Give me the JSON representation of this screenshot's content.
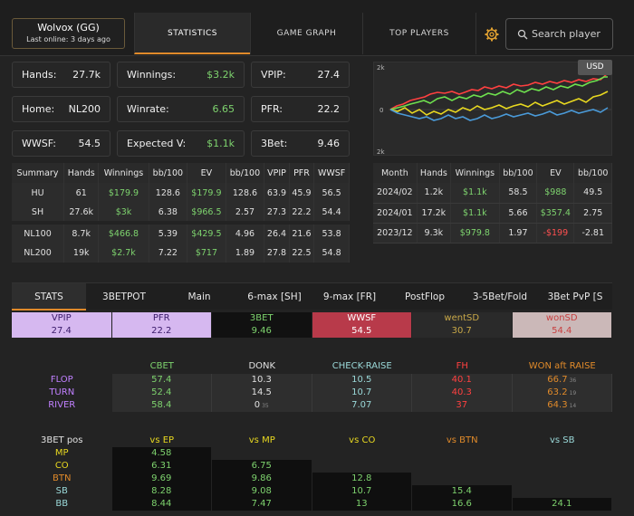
{
  "player": {
    "name": "Wolvox (GG)",
    "last_online": "Last online: 3 days ago"
  },
  "nav": {
    "statistics": "STATISTICS",
    "game_graph": "GAME GRAPH",
    "top_players": "TOP PLAYERS"
  },
  "search": {
    "placeholder": "Search player"
  },
  "cards": {
    "hands": {
      "label": "Hands:",
      "value": "27.7k"
    },
    "winnings": {
      "label": "Winnings:",
      "value": "$3.2k"
    },
    "vpip": {
      "label": "VPIP:",
      "value": "27.4"
    },
    "home": {
      "label": "Home:",
      "value": "NL200"
    },
    "winrate": {
      "label": "Winrate:",
      "value": "6.65"
    },
    "pfr": {
      "label": "PFR:",
      "value": "22.2"
    },
    "wwsf": {
      "label": "WWSF:",
      "value": "54.5"
    },
    "expected": {
      "label": "Expected V:",
      "value": "$1.1k"
    },
    "threebet": {
      "label": "3Bet:",
      "value": "9.46"
    }
  },
  "graph": {
    "currency": "USD",
    "y_top": "2k",
    "y_zero": "0",
    "y_bottom": "2k",
    "colors": {
      "green": "#6ee04e",
      "red": "#ff4040",
      "yellow": "#e8d820",
      "blue": "#4a9ad8"
    }
  },
  "summary": {
    "headers": [
      "Summary",
      "Hands",
      "Winnings",
      "bb/100",
      "EV",
      "bb/100",
      "VPIP",
      "PFR",
      "WWSF"
    ],
    "rows": [
      [
        "HU",
        "61",
        "$179.9",
        "128.6",
        "$179.9",
        "128.6",
        "63.9",
        "45.9",
        "56.5"
      ],
      [
        "SH",
        "27.6k",
        "$3k",
        "6.38",
        "$966.5",
        "2.57",
        "27.3",
        "22.2",
        "54.4"
      ],
      [
        "NL100",
        "8.7k",
        "$466.8",
        "5.39",
        "$429.5",
        "4.96",
        "26.4",
        "21.6",
        "53.8"
      ],
      [
        "NL200",
        "19k",
        "$2.7k",
        "7.22",
        "$717",
        "1.89",
        "27.8",
        "22.5",
        "54.8"
      ]
    ]
  },
  "months": {
    "headers": [
      "Month",
      "Hands",
      "Winnings",
      "bb/100",
      "EV",
      "bb/100"
    ],
    "rows": [
      [
        "2024/02",
        "1.2k",
        "$1.1k",
        "58.5",
        "$988",
        "49.5"
      ],
      [
        "2024/01",
        "17.2k",
        "$1.1k",
        "5.66",
        "$357.4",
        "2.75"
      ],
      [
        "2023/12",
        "9.3k",
        "$979.8",
        "1.97",
        "-$199",
        "-2.81"
      ]
    ]
  },
  "subtabs": [
    "STATS",
    "3BETPOT",
    "Main",
    "6-max [SH]",
    "9-max [FR]",
    "PostFlop",
    "3-5Bet/Fold",
    "3Bet PvP [S"
  ],
  "prestats": {
    "headers": [
      "VPIP",
      "PFR",
      "3BET",
      "WWSF",
      "wentSD",
      "wonSD"
    ],
    "values": [
      "27.4",
      "22.2",
      "9.46",
      "54.5",
      "30.7",
      "54.4"
    ]
  },
  "postflop": {
    "headers": [
      "CBET",
      "DONK",
      "CHECK-RAISE",
      "FH",
      "WON aft RAISE"
    ],
    "rows": [
      {
        "street": "FLOP",
        "values": [
          "57.4",
          "10.3",
          "10.5",
          "40.1",
          "66.7"
        ],
        "sub": [
          "",
          "",
          "",
          "",
          "36"
        ]
      },
      {
        "street": "TURN",
        "values": [
          "52.4",
          "14.5",
          "10.7",
          "40.3",
          "63.2"
        ],
        "sub": [
          "",
          "",
          "",
          "",
          "19"
        ]
      },
      {
        "street": "RIVER",
        "values": [
          "58.4",
          "0",
          "7.07",
          "37",
          "64.3"
        ],
        "sub": [
          "",
          "35",
          "",
          "",
          "14"
        ]
      }
    ]
  },
  "threebetpos": {
    "title": "3BET pos",
    "headers": [
      "vs EP",
      "vs MP",
      "vs CO",
      "vs BTN",
      "vs SB"
    ],
    "rows": [
      {
        "pos": "MP",
        "values": [
          "4.58",
          "",
          "",
          "",
          ""
        ]
      },
      {
        "pos": "CO",
        "values": [
          "6.31",
          "6.75",
          "",
          "",
          ""
        ]
      },
      {
        "pos": "BTN",
        "values": [
          "9.69",
          "9.86",
          "12.8",
          "",
          ""
        ]
      },
      {
        "pos": "SB",
        "values": [
          "8.28",
          "9.08",
          "10.7",
          "15.4",
          ""
        ]
      },
      {
        "pos": "BB",
        "values": [
          "8.44",
          "7.47",
          "13",
          "16.6",
          "24.1"
        ]
      }
    ]
  }
}
